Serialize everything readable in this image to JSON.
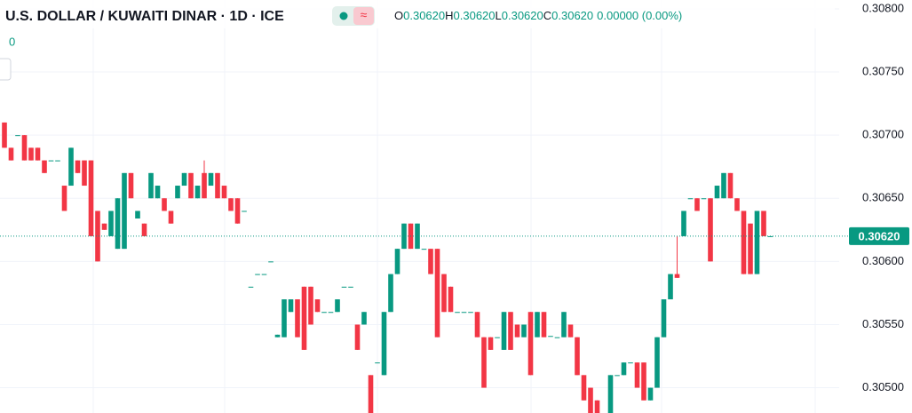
{
  "chart_data": {
    "type": "candlestick",
    "title": "U.S. DOLLAR / KUWAITI DINAR · 1D · ICE",
    "indicator_value": "0",
    "ohlc_legend": [
      {
        "key": "O",
        "value": "0.30620"
      },
      {
        "key": "H",
        "value": "0.30620"
      },
      {
        "key": "L",
        "value": "0.30620"
      },
      {
        "key": "C",
        "value": "0.30620"
      }
    ],
    "change": "0.00000 (0.00%)",
    "up_color": "#089981",
    "down_color": "#f23645",
    "ylim": [
      0.3048,
      0.30807
    ],
    "yticks": [
      {
        "value": 0.308,
        "label": "0.30800"
      },
      {
        "value": 0.3075,
        "label": "0.30750"
      },
      {
        "value": 0.307,
        "label": "0.30700"
      },
      {
        "value": 0.3065,
        "label": "0.30650"
      },
      {
        "value": 0.306,
        "label": "0.30600"
      },
      {
        "value": 0.3055,
        "label": "0.30550"
      },
      {
        "value": 0.305,
        "label": "0.30500"
      }
    ],
    "last_price": {
      "value": 0.3062,
      "label": "0.30620"
    },
    "open": [
      0.3071,
      0.3069,
      0.307,
      0.307,
      0.3069,
      0.3069,
      0.3068,
      0.3068,
      0.3068,
      0.3066,
      0.3066,
      0.3068,
      0.3068,
      0.3068,
      0.3064,
      0.3063,
      0.3062,
      0.3061,
      0.3061,
      0.3067,
      0.30634,
      0.3063,
      0.3065,
      0.3065,
      0.3065,
      0.3064,
      0.3065,
      0.3066,
      0.3067,
      0.3065,
      0.3067,
      0.3066,
      0.3067,
      0.3066,
      0.3065,
      0.3065,
      0.3064,
      0.3058,
      0.3059,
      0.3059,
      0.306,
      0.3054,
      0.3054,
      0.3056,
      0.3057,
      0.3058,
      0.3058,
      0.3057,
      0.3056,
      0.3056,
      0.3056,
      0.3058,
      0.3058,
      0.3055,
      0.3055,
      0.3051,
      0.3052,
      0.3051,
      0.3056,
      0.3059,
      0.3061,
      0.3063,
      0.3061,
      0.3061,
      0.3061,
      0.3061,
      0.3059,
      0.3058,
      0.3056,
      0.3056,
      0.3056,
      0.3056,
      0.3054,
      0.3054,
      0.3054,
      0.3053,
      0.3056,
      0.3055,
      0.3054,
      0.3056,
      0.3054,
      0.3056,
      0.30541,
      0.3054,
      0.3054,
      0.3055,
      0.3054,
      0.3051,
      0.305,
      0.3049,
      0.3048,
      0.3048,
      0.3051,
      0.3051,
      0.3052,
      0.3052,
      0.3052,
      0.3049,
      0.305,
      0.3054,
      0.3057,
      0.3059,
      0.3062,
      0.3065,
      0.3065,
      0.3065,
      0.3065,
      0.3065,
      0.3065,
      0.3067,
      0.3065,
      0.3064,
      0.3063,
      0.3059,
      0.3064,
      0.3062
    ],
    "high": [
      0.3071,
      0.3069,
      0.307,
      0.307,
      0.3069,
      0.3069,
      0.3068,
      0.3068,
      0.3068,
      0.3066,
      0.3069,
      0.3068,
      0.3068,
      0.3068,
      0.3064,
      0.3063,
      0.3064,
      0.3065,
      0.3067,
      0.3067,
      0.3064,
      0.3063,
      0.3067,
      0.3066,
      0.3065,
      0.3064,
      0.3066,
      0.3067,
      0.3067,
      0.3066,
      0.3068,
      0.3067,
      0.3067,
      0.3066,
      0.3065,
      0.3065,
      0.3064,
      0.3058,
      0.3059,
      0.3059,
      0.306,
      0.30542,
      0.3057,
      0.3057,
      0.3057,
      0.3058,
      0.3058,
      0.3057,
      0.3056,
      0.3056,
      0.3057,
      0.3058,
      0.3058,
      0.3055,
      0.3056,
      0.3051,
      0.3052,
      0.3056,
      0.3059,
      0.3061,
      0.3063,
      0.3063,
      0.3063,
      0.3061,
      0.3061,
      0.3061,
      0.3059,
      0.3058,
      0.3056,
      0.3056,
      0.3056,
      0.3056,
      0.3054,
      0.3054,
      0.3054,
      0.3056,
      0.3056,
      0.3055,
      0.3055,
      0.3056,
      0.3056,
      0.3056,
      0.30541,
      0.3054,
      0.3056,
      0.3055,
      0.3054,
      0.3051,
      0.305,
      0.3049,
      0.3048,
      0.3051,
      0.3051,
      0.3052,
      0.3052,
      0.3052,
      0.3052,
      0.305,
      0.3054,
      0.3057,
      0.3059,
      0.3062,
      0.3064,
      0.3065,
      0.3065,
      0.3065,
      0.3065,
      0.3066,
      0.3067,
      0.3067,
      0.3065,
      0.3064,
      0.3063,
      0.3064,
      0.3064,
      0.3062
    ],
    "low": [
      0.3069,
      0.3068,
      0.307,
      0.3068,
      0.3068,
      0.3068,
      0.3067,
      0.3068,
      0.3068,
      0.3064,
      0.3066,
      0.3067,
      0.3066,
      0.3062,
      0.306,
      0.30625,
      0.3062,
      0.3061,
      0.3061,
      0.3065,
      0.30634,
      0.3062,
      0.3065,
      0.3065,
      0.3064,
      0.3063,
      0.3065,
      0.3066,
      0.3065,
      0.3065,
      0.3065,
      0.3066,
      0.3065,
      0.3065,
      0.3064,
      0.3063,
      0.3064,
      0.3058,
      0.3059,
      0.3059,
      0.306,
      0.3054,
      0.3054,
      0.3056,
      0.3054,
      0.3053,
      0.3055,
      0.3056,
      0.3056,
      0.3056,
      0.3056,
      0.3058,
      0.3058,
      0.3053,
      0.3055,
      0.3047,
      0.3052,
      0.3051,
      0.3056,
      0.3059,
      0.3061,
      0.3061,
      0.3061,
      0.3061,
      0.3059,
      0.3054,
      0.3056,
      0.3056,
      0.3056,
      0.3056,
      0.3056,
      0.3054,
      0.305,
      0.3053,
      0.3054,
      0.3053,
      0.3053,
      0.3054,
      0.3054,
      0.3051,
      0.3054,
      0.3054,
      0.30541,
      0.3054,
      0.3054,
      0.3054,
      0.3051,
      0.3049,
      0.3048,
      0.3048,
      0.3048,
      0.3048,
      0.3051,
      0.3051,
      0.3052,
      0.305,
      0.3049,
      0.3049,
      0.305,
      0.3054,
      0.3057,
      0.30587,
      0.3062,
      0.3065,
      0.3064,
      0.3065,
      0.306,
      0.3065,
      0.3065,
      0.3065,
      0.3064,
      0.3059,
      0.3059,
      0.3059,
      0.3062,
      0.3062
    ],
    "close": [
      0.3069,
      0.3068,
      0.307,
      0.3068,
      0.3068,
      0.3068,
      0.3067,
      0.3068,
      0.3068,
      0.3064,
      0.3069,
      0.3067,
      0.3066,
      0.3062,
      0.306,
      0.30625,
      0.3064,
      0.3065,
      0.3067,
      0.3065,
      0.3064,
      0.3062,
      0.3067,
      0.3066,
      0.3064,
      0.3063,
      0.3066,
      0.3067,
      0.3065,
      0.3066,
      0.3065,
      0.3067,
      0.3065,
      0.3065,
      0.3064,
      0.3063,
      0.3064,
      0.3058,
      0.3059,
      0.3059,
      0.306,
      0.30542,
      0.3057,
      0.3057,
      0.3054,
      0.3053,
      0.3055,
      0.3056,
      0.3056,
      0.3056,
      0.3057,
      0.3058,
      0.3058,
      0.3053,
      0.3056,
      0.3047,
      0.3052,
      0.3056,
      0.3059,
      0.3061,
      0.3063,
      0.3061,
      0.3063,
      0.3061,
      0.3059,
      0.3054,
      0.3056,
      0.3056,
      0.3056,
      0.3056,
      0.3056,
      0.3054,
      0.305,
      0.3053,
      0.3054,
      0.3056,
      0.3053,
      0.3054,
      0.3055,
      0.3051,
      0.3056,
      0.3054,
      0.30541,
      0.3054,
      0.3056,
      0.3054,
      0.3051,
      0.3049,
      0.3048,
      0.3048,
      0.3048,
      0.3051,
      0.3051,
      0.3052,
      0.3052,
      0.305,
      0.3049,
      0.305,
      0.3054,
      0.3057,
      0.3059,
      0.30587,
      0.3064,
      0.3065,
      0.3064,
      0.3065,
      0.306,
      0.3066,
      0.3067,
      0.3065,
      0.3064,
      0.3059,
      0.3059,
      0.3064,
      0.3062,
      0.3062
    ]
  }
}
